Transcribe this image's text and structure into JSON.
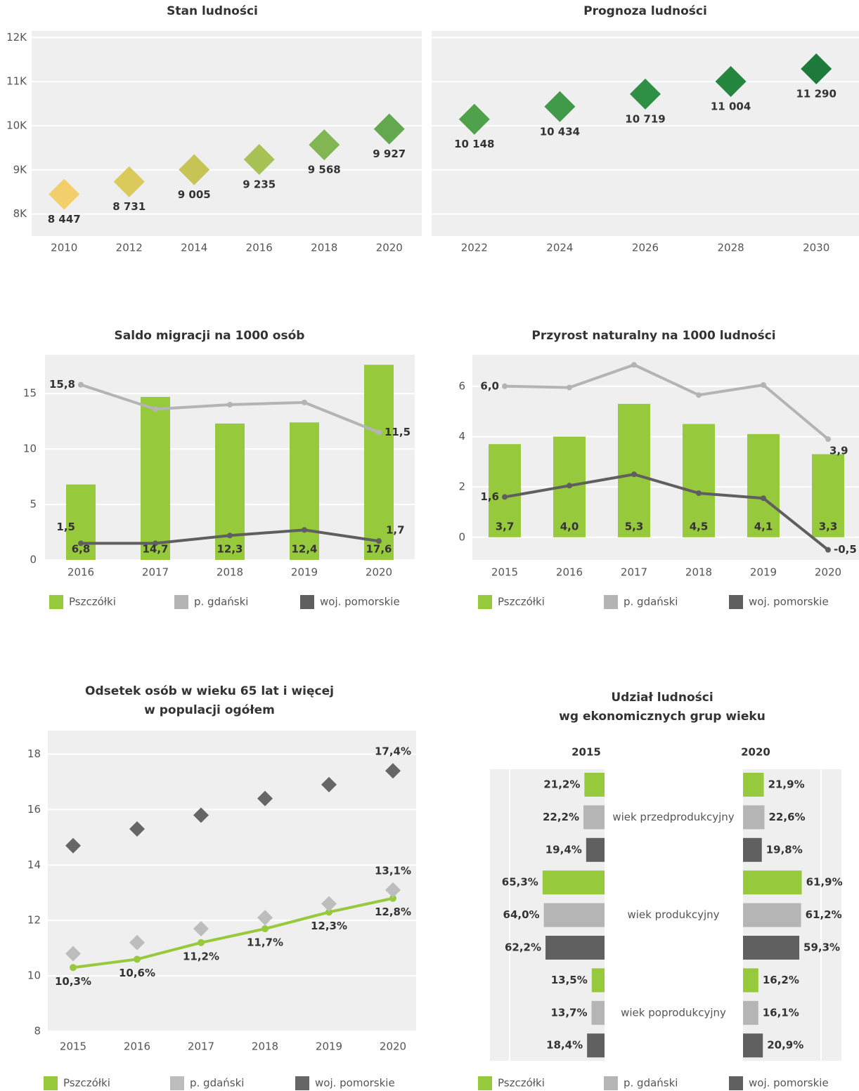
{
  "chart_data": [
    {
      "type": "scatter",
      "title": "Stan ludności",
      "categories": [
        "2010",
        "2012",
        "2014",
        "2016",
        "2018",
        "2020"
      ],
      "values": [
        8447,
        8731,
        9005,
        9235,
        9568,
        9927
      ],
      "value_labels": [
        "8 447",
        "8 731",
        "9 005",
        "9 235",
        "9 568",
        "9 927"
      ],
      "colors": [
        "#f2cf6a",
        "#dac95b",
        "#c6c455",
        "#a9c256",
        "#82b652",
        "#63a84e"
      ],
      "ylim": [
        7500,
        12150
      ],
      "yticks": [
        {
          "value": 8000,
          "label": "8K"
        },
        {
          "value": 9000,
          "label": "9K"
        },
        {
          "value": 10000,
          "label": "10K"
        },
        {
          "value": 11000,
          "label": "11K"
        },
        {
          "value": 12000,
          "label": "12K"
        }
      ],
      "grid": true
    },
    {
      "type": "scatter",
      "title": "Prognoza ludności",
      "categories": [
        "2022",
        "2024",
        "2026",
        "2028",
        "2030"
      ],
      "values": [
        10148,
        10434,
        10719,
        11004,
        11290
      ],
      "value_labels": [
        "10 148",
        "10 434",
        "10 719",
        "11 004",
        "11 290"
      ],
      "colors": [
        "#4fa24b",
        "#409a4a",
        "#2f8f45",
        "#258640",
        "#1e7a3a"
      ],
      "ylim": [
        7500,
        12150
      ],
      "yticks": [
        8000,
        9000,
        10000,
        11000,
        12000
      ],
      "ytick_labels": false,
      "grid": true
    },
    {
      "type": "combo",
      "title": "Saldo migracji na 1000 osób",
      "categories": [
        "2016",
        "2017",
        "2018",
        "2019",
        "2020"
      ],
      "series": [
        {
          "name": "Pszczółki",
          "type": "bar",
          "color": "#97c93c",
          "values": [
            6.8,
            14.7,
            12.3,
            12.4,
            17.6
          ],
          "value_labels": [
            "6,8",
            "14,7",
            "12,3",
            "12,4",
            "17,6"
          ]
        },
        {
          "name": "p. gdański",
          "type": "line",
          "color": "#b4b4b4",
          "values": [
            15.8,
            13.6,
            14.0,
            14.2,
            11.5
          ],
          "value_labels": [
            "15,8",
            null,
            null,
            null,
            "11,5"
          ]
        },
        {
          "name": "woj. pomorskie",
          "type": "line",
          "color": "#5f5f5f",
          "values": [
            1.5,
            1.5,
            2.2,
            2.7,
            1.7
          ],
          "value_labels": [
            "1,5",
            null,
            null,
            null,
            "1,7"
          ]
        }
      ],
      "ylim": [
        0,
        18.5
      ],
      "yticks": [
        0,
        5,
        10,
        15
      ],
      "grid": true
    },
    {
      "type": "combo",
      "title": "Przyrost naturalny na 1000 ludności",
      "categories": [
        "2015",
        "2016",
        "2017",
        "2018",
        "2019",
        "2020"
      ],
      "series": [
        {
          "name": "Pszczółki",
          "type": "bar",
          "color": "#97c93c",
          "values": [
            3.7,
            4.0,
            5.3,
            4.5,
            4.1,
            3.3
          ],
          "value_labels": [
            "3,7",
            "4,0",
            "5,3",
            "4,5",
            "4,1",
            "3,3"
          ]
        },
        {
          "name": "p. gdański",
          "type": "line",
          "color": "#b4b4b4",
          "values": [
            6.0,
            5.95,
            6.85,
            5.65,
            6.05,
            3.9
          ],
          "value_labels": [
            "6,0",
            null,
            null,
            null,
            null,
            "3,9"
          ]
        },
        {
          "name": "woj. pomorskie",
          "type": "line",
          "color": "#5f5f5f",
          "values": [
            1.6,
            2.05,
            2.5,
            1.75,
            1.55,
            -0.5
          ],
          "value_labels": [
            "1,6",
            null,
            null,
            null,
            null,
            "-0,5"
          ]
        }
      ],
      "ylim": [
        -0.9,
        7.25
      ],
      "yticks": [
        0,
        2,
        4,
        6
      ],
      "grid": true
    },
    {
      "type": "combo",
      "title": [
        "Odsetek osób w wieku 65 lat i więcej",
        "w populacji ogółem"
      ],
      "categories": [
        "2015",
        "2016",
        "2017",
        "2018",
        "2019",
        "2020"
      ],
      "series": [
        {
          "name": "Pszczółki",
          "type": "line",
          "color": "#97c93c",
          "values": [
            10.3,
            10.6,
            11.2,
            11.7,
            12.3,
            12.8
          ],
          "value_labels": [
            "10,3%",
            "10,6%",
            "11,2%",
            "11,7%",
            "12,3%",
            "12,8%"
          ]
        },
        {
          "name": "p. gdański",
          "type": "scatter",
          "color": "#bdbdbd",
          "values": [
            10.8,
            11.2,
            11.7,
            12.1,
            12.6,
            13.1
          ],
          "value_labels": [
            null,
            null,
            null,
            null,
            null,
            "13,1%"
          ]
        },
        {
          "name": "woj. pomorskie",
          "type": "scatter",
          "color": "#666666",
          "values": [
            14.7,
            15.3,
            15.8,
            16.4,
            16.9,
            17.4
          ],
          "value_labels": [
            null,
            null,
            null,
            null,
            null,
            "17,4%"
          ]
        }
      ],
      "ylim": [
        8,
        18.85
      ],
      "yticks": [
        8,
        10,
        12,
        14,
        16,
        18
      ],
      "grid": true
    },
    {
      "type": "butterfly",
      "title": [
        "Udział ludności",
        "wg ekonomicznych grup wieku"
      ],
      "columns": [
        "2015",
        "2020"
      ],
      "categories": [
        "wiek przedprodukcyjny",
        "wiek produkcyjny",
        "wiek poprodukcyjny"
      ],
      "series": [
        {
          "name": "Pszczółki",
          "color": "#97c93c",
          "values": [
            [
              21.2,
              65.3,
              13.5
            ],
            [
              21.9,
              61.9,
              16.2
            ]
          ],
          "value_labels": [
            [
              "21,2%",
              "65,3%",
              "13,5%"
            ],
            [
              "21,9%",
              "61,9%",
              "16,2%"
            ]
          ]
        },
        {
          "name": "p. gdański",
          "color": "#b5b5b5",
          "values": [
            [
              22.2,
              64.0,
              13.7
            ],
            [
              22.6,
              61.2,
              16.1
            ]
          ],
          "value_labels": [
            [
              "22,2%",
              "64,0%",
              "13,7%"
            ],
            [
              "22,6%",
              "61,2%",
              "16,1%"
            ]
          ]
        },
        {
          "name": "woj. pomorskie",
          "color": "#606060",
          "values": [
            [
              19.4,
              62.2,
              18.4
            ],
            [
              19.8,
              59.3,
              20.9
            ]
          ],
          "value_labels": [
            [
              "19,4%",
              "62,2%",
              "18,4%"
            ],
            [
              "19,8%",
              "59,3%",
              "20,9%"
            ]
          ]
        }
      ],
      "xlim": [
        0,
        100
      ]
    }
  ]
}
